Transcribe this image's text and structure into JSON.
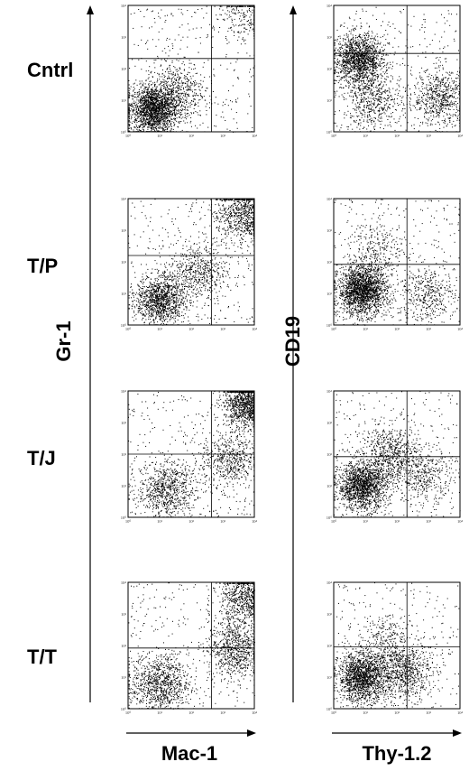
{
  "rows": [
    "Cntrl",
    "T/P",
    "T/J",
    "T/T"
  ],
  "left_panel": {
    "y_axis_label": "Gr-1",
    "x_axis_label": "Mac-1"
  },
  "right_panel": {
    "y_axis_label": "CD19",
    "x_axis_label": "Thy-1.2"
  },
  "tick_labels": [
    "10⁰",
    "10¹",
    "10²",
    "10³",
    "10⁴"
  ],
  "plot_color": "#000000",
  "chart_data": [
    {
      "type": "scatter",
      "row": "Cntrl",
      "panel": "Gr-1 vs Mac-1",
      "xlim_decades": [
        0,
        4
      ],
      "ylim_decades": [
        0,
        4
      ],
      "populations": [
        {
          "x": 0.8,
          "y": 0.7,
          "weight": 0.7
        },
        {
          "x": 1.5,
          "y": 1.3,
          "weight": 0.2
        },
        {
          "x": 3.8,
          "y": 3.8,
          "weight": 0.1
        }
      ]
    },
    {
      "type": "scatter",
      "row": "Cntrl",
      "panel": "CD19 vs Thy-1.2",
      "xlim_decades": [
        0,
        4
      ],
      "ylim_decades": [
        0,
        4
      ],
      "populations": [
        {
          "x": 0.8,
          "y": 2.3,
          "weight": 0.55
        },
        {
          "x": 3.4,
          "y": 1.1,
          "weight": 0.25
        },
        {
          "x": 1.2,
          "y": 1.0,
          "weight": 0.2
        }
      ]
    },
    {
      "type": "scatter",
      "row": "T/P",
      "panel": "Gr-1 vs Mac-1",
      "xlim_decades": [
        0,
        4
      ],
      "ylim_decades": [
        0,
        4
      ],
      "populations": [
        {
          "x": 1.0,
          "y": 0.8,
          "weight": 0.45
        },
        {
          "x": 2.2,
          "y": 1.7,
          "weight": 0.2
        },
        {
          "x": 3.7,
          "y": 3.5,
          "weight": 0.35
        }
      ]
    },
    {
      "type": "scatter",
      "row": "T/P",
      "panel": "CD19 vs Thy-1.2",
      "xlim_decades": [
        0,
        4
      ],
      "ylim_decades": [
        0,
        4
      ],
      "populations": [
        {
          "x": 0.9,
          "y": 1.1,
          "weight": 0.75
        },
        {
          "x": 1.4,
          "y": 2.4,
          "weight": 0.1
        },
        {
          "x": 2.9,
          "y": 1.0,
          "weight": 0.15
        }
      ]
    },
    {
      "type": "scatter",
      "row": "T/J",
      "panel": "Gr-1 vs Mac-1",
      "xlim_decades": [
        0,
        4
      ],
      "ylim_decades": [
        0,
        4
      ],
      "populations": [
        {
          "x": 1.2,
          "y": 0.9,
          "weight": 0.3
        },
        {
          "x": 3.2,
          "y": 1.8,
          "weight": 0.2
        },
        {
          "x": 3.8,
          "y": 3.6,
          "weight": 0.5
        }
      ]
    },
    {
      "type": "scatter",
      "row": "T/J",
      "panel": "CD19 vs Thy-1.2",
      "xlim_decades": [
        0,
        4
      ],
      "ylim_decades": [
        0,
        4
      ],
      "populations": [
        {
          "x": 0.9,
          "y": 1.0,
          "weight": 0.6
        },
        {
          "x": 1.8,
          "y": 2.0,
          "weight": 0.25
        },
        {
          "x": 2.8,
          "y": 1.3,
          "weight": 0.15
        }
      ]
    },
    {
      "type": "scatter",
      "row": "T/T",
      "panel": "Gr-1 vs Mac-1",
      "xlim_decades": [
        0,
        4
      ],
      "ylim_decades": [
        0,
        4
      ],
      "populations": [
        {
          "x": 1.0,
          "y": 0.8,
          "weight": 0.35
        },
        {
          "x": 3.4,
          "y": 1.9,
          "weight": 0.3
        },
        {
          "x": 3.8,
          "y": 3.5,
          "weight": 0.35
        }
      ]
    },
    {
      "type": "scatter",
      "row": "T/T",
      "panel": "CD19 vs Thy-1.2",
      "xlim_decades": [
        0,
        4
      ],
      "ylim_decades": [
        0,
        4
      ],
      "populations": [
        {
          "x": 0.9,
          "y": 1.0,
          "weight": 0.6
        },
        {
          "x": 2.2,
          "y": 1.2,
          "weight": 0.3
        },
        {
          "x": 1.6,
          "y": 2.1,
          "weight": 0.1
        }
      ]
    }
  ]
}
